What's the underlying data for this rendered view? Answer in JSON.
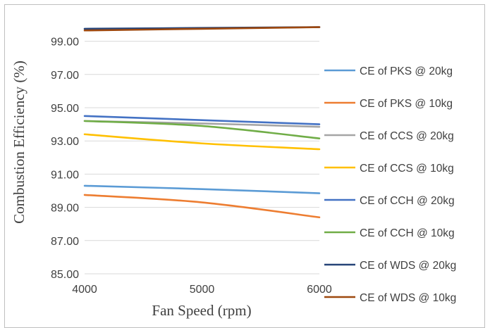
{
  "chart_data": {
    "type": "line",
    "title": "",
    "xlabel": "Fan Speed (rpm)",
    "ylabel": "Combustion Efficiency (%)",
    "xlim": [
      4000,
      6000
    ],
    "ylim": [
      85,
      100
    ],
    "x_ticks": [
      "4000",
      "5000",
      "6000"
    ],
    "y_ticks": [
      "85.00",
      "87.00",
      "89.00",
      "91.00",
      "93.00",
      "95.00",
      "97.00",
      "99.00"
    ],
    "y_tick_values": [
      85,
      87,
      89,
      91,
      93,
      95,
      97,
      99
    ],
    "x_tick_values": [
      4000,
      5000,
      6000
    ],
    "x": [
      4000,
      5000,
      6000
    ],
    "grid": "horizontal",
    "legend_position": "right",
    "series": [
      {
        "name": "CE of PKS @ 20kg",
        "color": "#5b9bd5",
        "values": [
          90.3,
          90.1,
          89.85
        ]
      },
      {
        "name": "CE of PKS @ 10kg",
        "color": "#ed7d31",
        "values": [
          89.75,
          89.3,
          88.4
        ]
      },
      {
        "name": "CE of CCS @ 20kg",
        "color": "#a5a5a5",
        "values": [
          94.2,
          94.05,
          93.85
        ]
      },
      {
        "name": "CE of CCS @ 10kg",
        "color": "#ffc000",
        "values": [
          93.4,
          92.85,
          92.5
        ]
      },
      {
        "name": "CE of CCH @ 20kg",
        "color": "#4472c4",
        "values": [
          94.5,
          94.25,
          94.0
        ]
      },
      {
        "name": "CE of CCH @ 10kg",
        "color": "#70ad47",
        "values": [
          94.2,
          93.9,
          93.15
        ]
      },
      {
        "name": "CE of WDS @ 20kg",
        "color": "#264478",
        "values": [
          99.75,
          99.8,
          99.85
        ]
      },
      {
        "name": "CE of WDS @ 10kg",
        "color": "#9e480e",
        "values": [
          99.65,
          99.75,
          99.85
        ]
      }
    ]
  }
}
